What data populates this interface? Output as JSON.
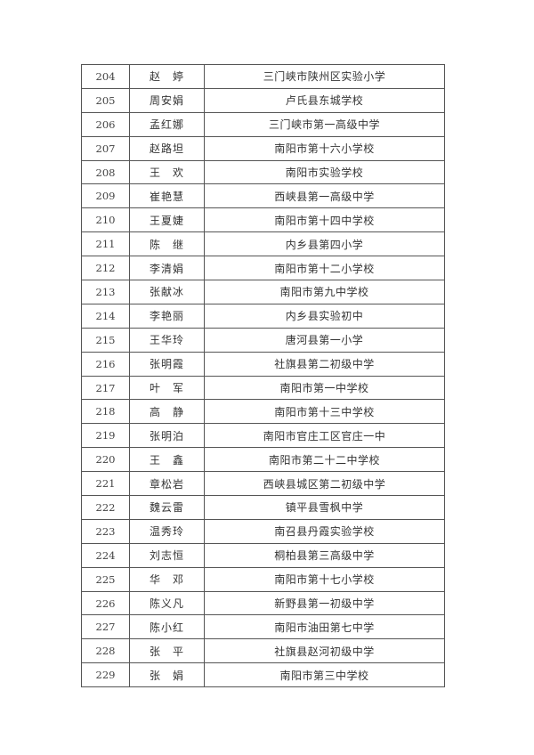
{
  "rows": [
    {
      "no": "204",
      "name": "赵　婷",
      "school": "三门峡市陕州区实验小学"
    },
    {
      "no": "205",
      "name": "周安娟",
      "school": "卢氏县东城学校"
    },
    {
      "no": "206",
      "name": "孟红娜",
      "school": "三门峡市第一高级中学"
    },
    {
      "no": "207",
      "name": "赵路坦",
      "school": "南阳市第十六小学校"
    },
    {
      "no": "208",
      "name": "王　欢",
      "school": "南阳市实验学校"
    },
    {
      "no": "209",
      "name": "崔艳慧",
      "school": "西峡县第一高级中学"
    },
    {
      "no": "210",
      "name": "王夏婕",
      "school": "南阳市第十四中学校"
    },
    {
      "no": "211",
      "name": "陈　继",
      "school": "内乡县第四小学"
    },
    {
      "no": "212",
      "name": "李清娟",
      "school": "南阳市第十二小学校"
    },
    {
      "no": "213",
      "name": "张献冰",
      "school": "南阳市第九中学校"
    },
    {
      "no": "214",
      "name": "李艳丽",
      "school": "内乡县实验初中"
    },
    {
      "no": "215",
      "name": "王华玲",
      "school": "唐河县第一小学"
    },
    {
      "no": "216",
      "name": "张明霞",
      "school": "社旗县第二初级中学"
    },
    {
      "no": "217",
      "name": "叶　军",
      "school": "南阳市第一中学校"
    },
    {
      "no": "218",
      "name": "高　静",
      "school": "南阳市第十三中学校"
    },
    {
      "no": "219",
      "name": "张明泊",
      "school": "南阳市官庄工区官庄一中"
    },
    {
      "no": "220",
      "name": "王　鑫",
      "school": "南阳市第二十二中学校"
    },
    {
      "no": "221",
      "name": "章松岩",
      "school": "西峡县城区第二初级中学"
    },
    {
      "no": "222",
      "name": "魏云雷",
      "school": "镇平县雪枫中学"
    },
    {
      "no": "223",
      "name": "温秀玲",
      "school": "南召县丹霞实验学校"
    },
    {
      "no": "224",
      "name": "刘志恒",
      "school": "桐柏县第三高级中学"
    },
    {
      "no": "225",
      "name": "华　邓",
      "school": "南阳市第十七小学校"
    },
    {
      "no": "226",
      "name": "陈义凡",
      "school": "新野县第一初级中学"
    },
    {
      "no": "227",
      "name": "陈小红",
      "school": "南阳市油田第七中学"
    },
    {
      "no": "228",
      "name": "张　平",
      "school": "社旗县赵河初级中学"
    },
    {
      "no": "229",
      "name": "张　娟",
      "school": "南阳市第三中学校"
    }
  ]
}
